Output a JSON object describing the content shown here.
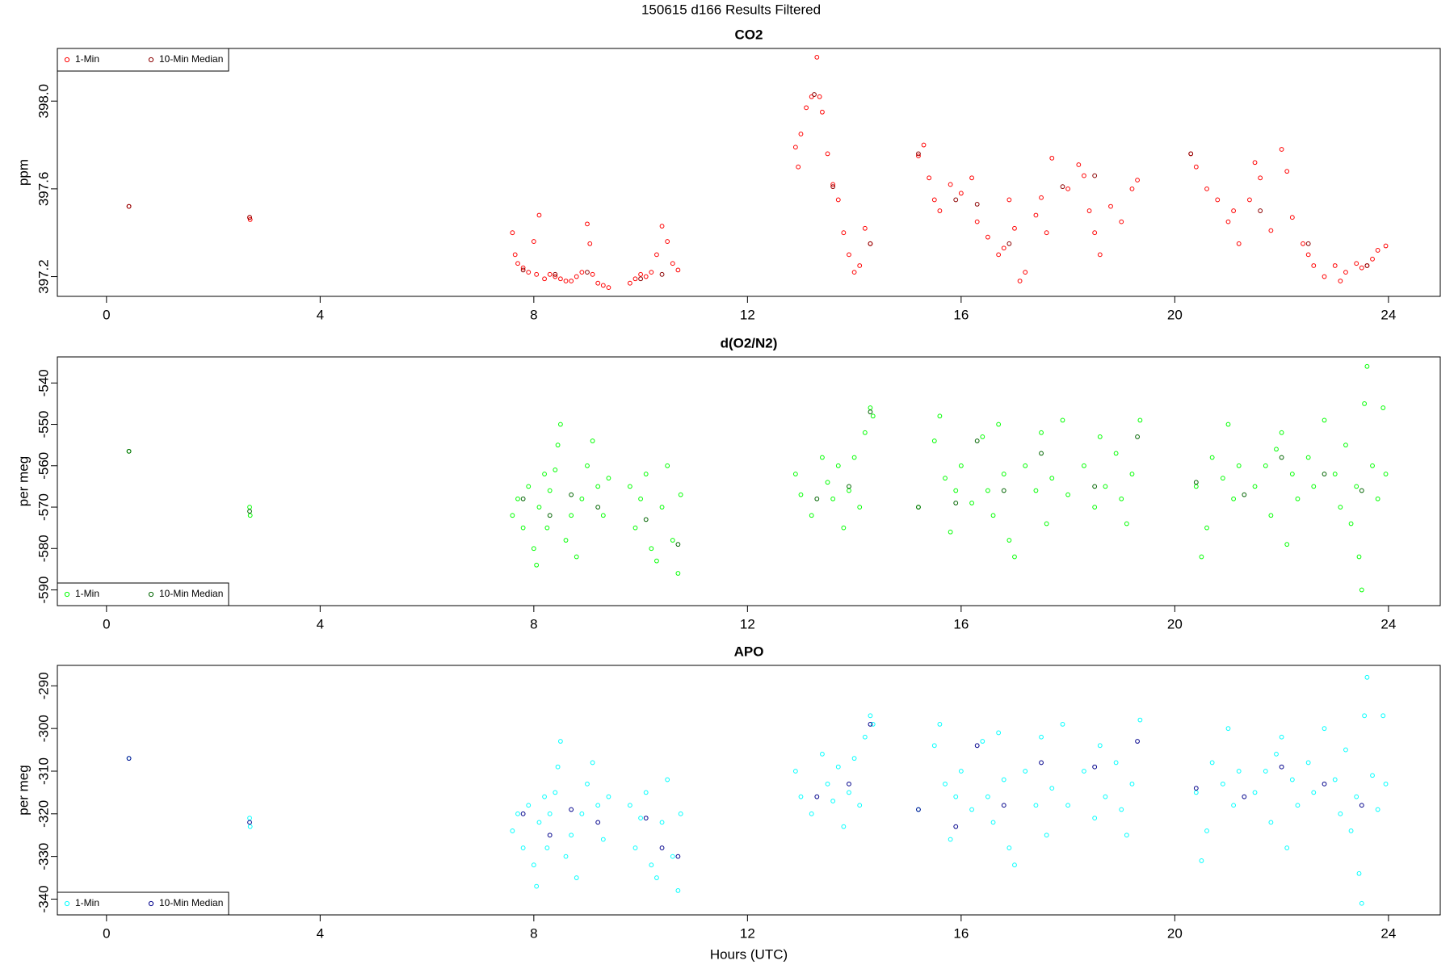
{
  "title": "150615   d166   Results Filtered",
  "chart_data": [
    {
      "type": "scatter",
      "title": "CO2",
      "ylabel": "ppm",
      "legend": "topleft",
      "xlim": [
        -0.92,
        24.97
      ],
      "xticks": [
        0,
        4,
        8,
        12,
        16,
        20,
        24
      ],
      "ylim": [
        397.11,
        398.24
      ],
      "yticks": [
        397.2,
        397.6,
        {
          "value": 398,
          "label": "398.0"
        }
      ],
      "series": [
        {
          "name": "1-Min",
          "color": "#ff0000",
          "x": [
            0.42,
            2.68,
            2.69,
            7.6,
            7.65,
            7.7,
            7.8,
            7.9,
            8.0,
            8.1,
            8.05,
            8.2,
            8.3,
            8.4,
            8.5,
            8.6,
            8.7,
            8.8,
            8.9,
            9.0,
            9.05,
            9.1,
            9.2,
            9.3,
            9.4,
            9.8,
            9.9,
            10.0,
            10.1,
            10.2,
            10.3,
            10.4,
            10.5,
            10.6,
            10.7,
            12.9,
            12.95,
            13.0,
            13.1,
            13.2,
            13.3,
            13.35,
            13.4,
            13.5,
            13.6,
            13.7,
            13.8,
            13.9,
            14.0,
            14.1,
            14.2,
            14.3,
            15.2,
            15.3,
            15.4,
            15.5,
            15.6,
            15.8,
            16.0,
            16.2,
            16.3,
            16.5,
            16.7,
            16.8,
            16.9,
            17.0,
            17.1,
            17.2,
            17.4,
            17.5,
            17.6,
            17.7,
            18.0,
            18.2,
            18.3,
            18.4,
            18.5,
            18.6,
            18.8,
            19.0,
            19.2,
            19.3,
            20.3,
            20.4,
            20.6,
            20.8,
            21.0,
            21.1,
            21.2,
            21.4,
            21.5,
            21.6,
            21.8,
            22.0,
            22.1,
            22.2,
            22.4,
            22.5,
            22.6,
            22.8,
            23.0,
            23.1,
            23.2,
            23.4,
            23.5,
            23.6,
            23.7,
            23.8,
            23.95
          ],
          "values": [
            397.52,
            397.47,
            397.46,
            397.4,
            397.3,
            397.26,
            397.24,
            397.22,
            397.36,
            397.48,
            397.21,
            397.19,
            397.21,
            397.2,
            397.19,
            397.18,
            397.18,
            397.2,
            397.22,
            397.44,
            397.35,
            397.21,
            397.17,
            397.16,
            397.15,
            397.17,
            397.19,
            397.21,
            397.2,
            397.22,
            397.3,
            397.43,
            397.36,
            397.26,
            397.23,
            397.79,
            397.7,
            397.85,
            397.97,
            398.02,
            398.2,
            398.02,
            397.95,
            397.76,
            397.62,
            397.55,
            397.4,
            397.3,
            397.22,
            397.25,
            397.42,
            397.35,
            397.75,
            397.8,
            397.65,
            397.55,
            397.5,
            397.62,
            397.58,
            397.65,
            397.45,
            397.38,
            397.3,
            397.33,
            397.55,
            397.42,
            397.18,
            397.22,
            397.48,
            397.56,
            397.4,
            397.74,
            397.6,
            397.71,
            397.66,
            397.5,
            397.4,
            397.3,
            397.52,
            397.45,
            397.6,
            397.64,
            397.76,
            397.7,
            397.6,
            397.55,
            397.45,
            397.5,
            397.35,
            397.55,
            397.72,
            397.65,
            397.41,
            397.78,
            397.68,
            397.47,
            397.35,
            397.3,
            397.25,
            397.2,
            397.25,
            397.18,
            397.22,
            397.26,
            397.24,
            397.25,
            397.28,
            397.32,
            397.34
          ]
        },
        {
          "name": "10-Min Median",
          "color": "#8b0000",
          "x": [
            0.42,
            2.68,
            7.8,
            8.4,
            9.0,
            10.0,
            10.4,
            13.25,
            13.6,
            14.3,
            15.2,
            15.9,
            16.3,
            16.9,
            17.9,
            18.5,
            20.3,
            21.6,
            22.5,
            23.6
          ],
          "values": [
            397.52,
            397.47,
            397.23,
            397.21,
            397.22,
            397.19,
            397.21,
            398.03,
            397.61,
            397.35,
            397.76,
            397.55,
            397.53,
            397.35,
            397.61,
            397.66,
            397.76,
            397.5,
            397.35,
            397.25
          ]
        }
      ]
    },
    {
      "type": "scatter",
      "title": "d(O2/N2)",
      "ylabel": "per meg",
      "legend": "bottomleft",
      "xlim": [
        -0.92,
        24.97
      ],
      "xticks": [
        0,
        4,
        8,
        12,
        16,
        20,
        24
      ],
      "ylim": [
        -593.8,
        -533.7
      ],
      "yticks": [
        -590,
        -580,
        -570,
        -560,
        -550,
        -540
      ],
      "series": [
        {
          "name": "1-Min",
          "color": "#00ff00",
          "x": [
            0.42,
            2.68,
            2.69,
            7.6,
            7.7,
            7.8,
            7.9,
            8.0,
            8.05,
            8.1,
            8.2,
            8.25,
            8.3,
            8.4,
            8.45,
            8.5,
            8.6,
            8.7,
            8.8,
            8.9,
            9.0,
            9.1,
            9.2,
            9.3,
            9.4,
            9.8,
            9.9,
            10.0,
            10.1,
            10.2,
            10.3,
            10.4,
            10.5,
            10.6,
            10.7,
            10.75,
            12.9,
            13.0,
            13.2,
            13.4,
            13.5,
            13.6,
            13.7,
            13.8,
            13.9,
            14.0,
            14.1,
            14.2,
            14.3,
            14.35,
            15.2,
            15.5,
            15.6,
            15.7,
            15.8,
            15.9,
            16.0,
            16.2,
            16.4,
            16.5,
            16.6,
            16.7,
            16.8,
            16.9,
            17.0,
            17.2,
            17.4,
            17.5,
            17.6,
            17.7,
            17.9,
            18.0,
            18.3,
            18.5,
            18.6,
            18.7,
            18.9,
            19.0,
            19.1,
            19.2,
            19.35,
            20.4,
            20.5,
            20.6,
            20.7,
            20.9,
            21.0,
            21.1,
            21.2,
            21.5,
            21.7,
            21.8,
            21.9,
            22.0,
            22.1,
            22.2,
            22.3,
            22.5,
            22.6,
            22.8,
            23.0,
            23.1,
            23.2,
            23.3,
            23.4,
            23.45,
            23.5,
            23.55,
            23.6,
            23.7,
            23.8,
            23.9,
            23.95
          ],
          "values": [
            -556.5,
            -570,
            -572,
            -572,
            -568,
            -575,
            -565,
            -580,
            -584,
            -570,
            -562,
            -575,
            -566,
            -561,
            -555,
            -550,
            -578,
            -572,
            -582,
            -568,
            -560,
            -554,
            -565,
            -572,
            -563,
            -565,
            -575,
            -568,
            -562,
            -580,
            -583,
            -570,
            -560,
            -578,
            -586,
            -567,
            -562,
            -567,
            -572,
            -558,
            -564,
            -568,
            -560,
            -575,
            -566,
            -558,
            -570,
            -552,
            -546,
            -548,
            -570,
            -554,
            -548,
            -563,
            -576,
            -566,
            -560,
            -569,
            -553,
            -566,
            -572,
            -550,
            -562,
            -578,
            -582,
            -560,
            -566,
            -552,
            -574,
            -563,
            -549,
            -567,
            -560,
            -570,
            -553,
            -565,
            -557,
            -568,
            -574,
            -562,
            -549,
            -565,
            -582,
            -575,
            -558,
            -563,
            -550,
            -568,
            -560,
            -565,
            -560,
            -572,
            -556,
            -552,
            -579,
            -562,
            -568,
            -558,
            -565,
            -549,
            -562,
            -570,
            -555,
            -574,
            -565,
            -582,
            -590,
            -545,
            -536,
            -560,
            -568,
            -546,
            -562
          ]
        },
        {
          "name": "10-Min Median",
          "color": "#006400",
          "x": [
            0.42,
            2.68,
            7.8,
            8.3,
            8.7,
            9.2,
            10.1,
            10.7,
            13.3,
            13.9,
            14.3,
            15.2,
            15.9,
            16.3,
            16.8,
            17.5,
            18.5,
            19.3,
            20.4,
            21.3,
            22.0,
            22.8,
            23.5
          ],
          "values": [
            -556.5,
            -571,
            -568,
            -572,
            -567,
            -570,
            -573,
            -579,
            -568,
            -565,
            -547,
            -570,
            -569,
            -554,
            -566,
            -557,
            -565,
            -553,
            -564,
            -567,
            -558,
            -562,
            -566
          ]
        }
      ]
    },
    {
      "type": "scatter",
      "title": "APO",
      "ylabel": "per meg",
      "xlabel": "Hours (UTC)",
      "legend": "bottomleft",
      "xlim": [
        -0.92,
        24.97
      ],
      "xticks": [
        0,
        4,
        8,
        12,
        16,
        20,
        24
      ],
      "ylim": [
        -343.7,
        -285.2
      ],
      "yticks": [
        -340,
        -330,
        -320,
        -310,
        -300,
        -290
      ],
      "series": [
        {
          "name": "1-Min",
          "color": "#00ffff",
          "x": [
            0.42,
            2.68,
            2.69,
            7.6,
            7.7,
            7.8,
            7.9,
            8.0,
            8.05,
            8.1,
            8.2,
            8.25,
            8.3,
            8.4,
            8.45,
            8.5,
            8.6,
            8.7,
            8.8,
            8.9,
            9.0,
            9.1,
            9.2,
            9.3,
            9.4,
            9.8,
            9.9,
            10.0,
            10.1,
            10.2,
            10.3,
            10.4,
            10.5,
            10.6,
            10.7,
            10.75,
            12.9,
            13.0,
            13.2,
            13.4,
            13.5,
            13.6,
            13.7,
            13.8,
            13.9,
            14.0,
            14.1,
            14.2,
            14.3,
            14.35,
            15.2,
            15.5,
            15.6,
            15.7,
            15.8,
            15.9,
            16.0,
            16.2,
            16.4,
            16.5,
            16.6,
            16.7,
            16.8,
            16.9,
            17.0,
            17.2,
            17.4,
            17.5,
            17.6,
            17.7,
            17.9,
            18.0,
            18.3,
            18.5,
            18.6,
            18.7,
            18.9,
            19.0,
            19.1,
            19.2,
            19.35,
            20.4,
            20.5,
            20.6,
            20.7,
            20.9,
            21.0,
            21.1,
            21.2,
            21.5,
            21.7,
            21.8,
            21.9,
            22.0,
            22.1,
            22.2,
            22.3,
            22.5,
            22.6,
            22.8,
            23.0,
            23.1,
            23.2,
            23.3,
            23.4,
            23.45,
            23.5,
            23.55,
            23.6,
            23.7,
            23.8,
            23.9,
            23.95
          ],
          "values": [
            -307,
            -321,
            -323,
            -324,
            -320,
            -328,
            -318,
            -332,
            -337,
            -322,
            -316,
            -328,
            -320,
            -315,
            -309,
            -303,
            -330,
            -325,
            -335,
            -320,
            -313,
            -308,
            -318,
            -326,
            -316,
            -318,
            -328,
            -321,
            -315,
            -332,
            -335,
            -322,
            -312,
            -330,
            -338,
            -320,
            -310,
            -316,
            -320,
            -306,
            -313,
            -317,
            -309,
            -323,
            -315,
            -307,
            -318,
            -302,
            -297,
            -299,
            -319,
            -304,
            -299,
            -313,
            -326,
            -316,
            -310,
            -319,
            -303,
            -316,
            -322,
            -301,
            -312,
            -328,
            -332,
            -310,
            -318,
            -302,
            -325,
            -314,
            -299,
            -318,
            -310,
            -321,
            -304,
            -316,
            -308,
            -319,
            -325,
            -313,
            -298,
            -315,
            -331,
            -324,
            -308,
            -313,
            -300,
            -318,
            -310,
            -315,
            -310,
            -322,
            -306,
            -302,
            -328,
            -312,
            -318,
            -308,
            -315,
            -300,
            -312,
            -320,
            -305,
            -324,
            -316,
            -334,
            -341,
            -297,
            -288,
            -311,
            -319,
            -297,
            -313
          ]
        },
        {
          "name": "10-Min Median",
          "color": "#00008b",
          "x": [
            0.42,
            2.68,
            7.8,
            8.3,
            8.7,
            9.2,
            10.1,
            10.4,
            10.7,
            13.3,
            13.9,
            14.3,
            15.2,
            15.9,
            16.3,
            16.8,
            17.5,
            18.5,
            19.3,
            20.4,
            21.3,
            22.0,
            22.8,
            23.5
          ],
          "values": [
            -307,
            -322,
            -320,
            -325,
            -319,
            -322,
            -321,
            -328,
            -330,
            -316,
            -313,
            -299,
            -319,
            -323,
            -304,
            -318,
            -308,
            -309,
            -303,
            -314,
            -316,
            -309,
            -313,
            -318
          ]
        }
      ]
    }
  ]
}
